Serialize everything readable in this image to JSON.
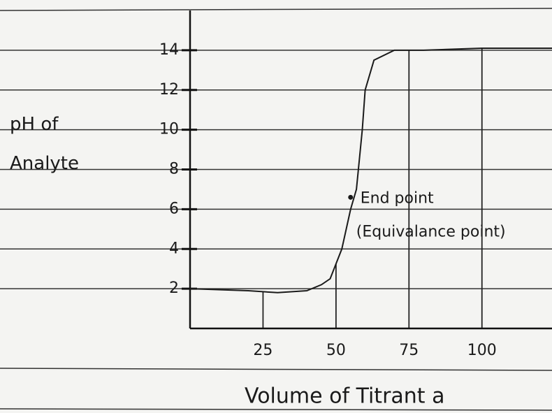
{
  "chart_data": {
    "type": "line",
    "ylabel": "pH of Analyte",
    "xlabel": "Volume of Titrant a",
    "x": [
      0,
      20,
      30,
      40,
      45,
      48,
      52,
      55,
      57,
      58,
      59,
      60,
      63,
      70,
      80,
      100,
      124
    ],
    "values": [
      2,
      1.9,
      1.8,
      1.9,
      2.2,
      2.5,
      4,
      6,
      7,
      8.5,
      10,
      12,
      13.5,
      14,
      14,
      14.1,
      14.1
    ],
    "color": "#1a1a1a",
    "end_point": {
      "x": 55,
      "y": 6.6,
      "label": [
        "End point",
        "(Equivalance point)"
      ]
    },
    "xlim": [
      0,
      124
    ],
    "ylim": [
      0,
      16
    ],
    "xticks": [
      25,
      50,
      75,
      100
    ],
    "yticks": [
      2,
      4,
      6,
      8,
      10,
      12,
      14
    ],
    "grid": true
  }
}
